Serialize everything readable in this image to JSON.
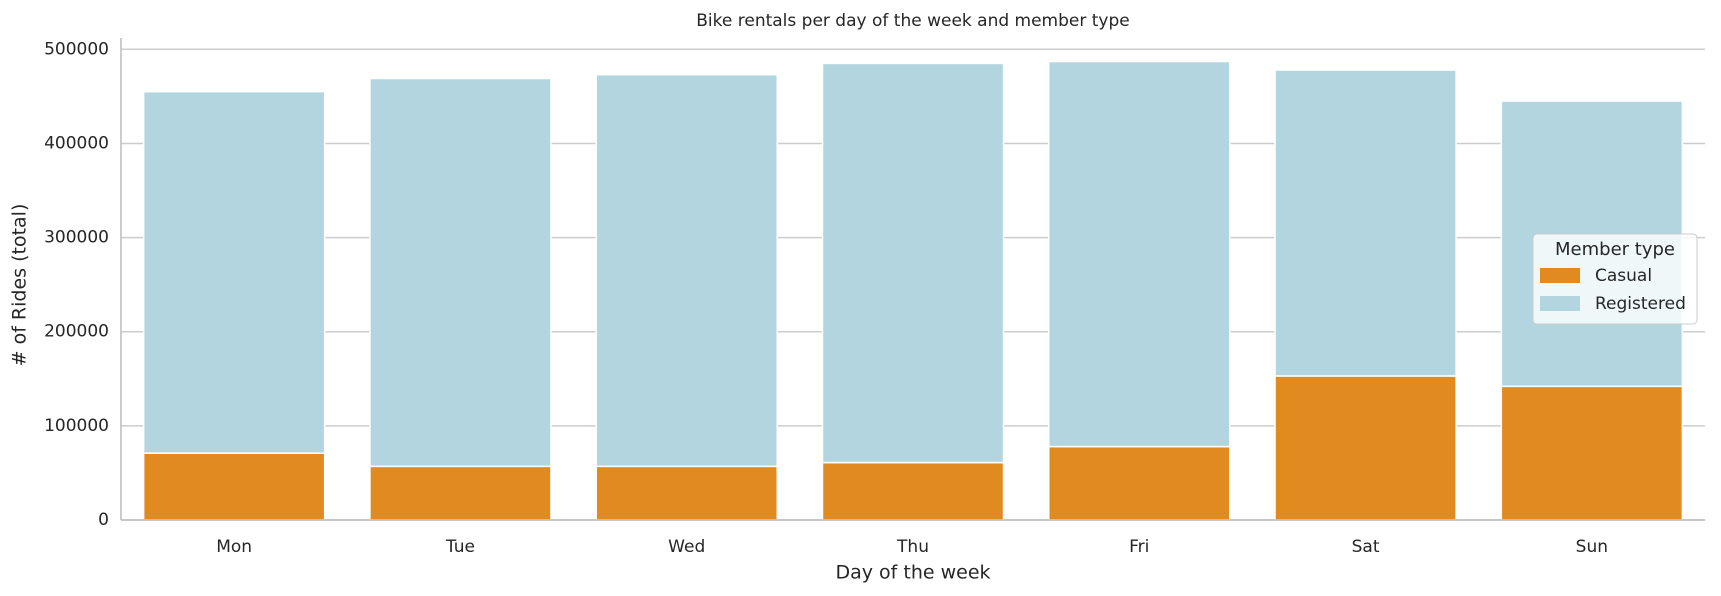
{
  "chart_data": {
    "type": "stacked_bar",
    "title": "Bike rentals per day of the week and member type",
    "x_label": "Day of the week",
    "y_label": "# of Rides (total)",
    "categories": [
      "Mon",
      "Tue",
      "Wed",
      "Thu",
      "Fri",
      "Sat",
      "Sun"
    ],
    "series": [
      {
        "name": "Casual",
        "color": "#e08a20",
        "values": [
          71000,
          57000,
          57000,
          61000,
          78000,
          153000,
          142000
        ]
      },
      {
        "name": "Registered",
        "color": "#b3d5df",
        "values": [
          384000,
          412000,
          416000,
          424000,
          409000,
          325000,
          303000
        ]
      }
    ],
    "ylim": [
      0,
      512000
    ],
    "yticks": [
      0,
      100000,
      200000,
      300000,
      400000,
      500000
    ],
    "grid": true,
    "legend_title": "Member type",
    "legend_position": "center right"
  }
}
